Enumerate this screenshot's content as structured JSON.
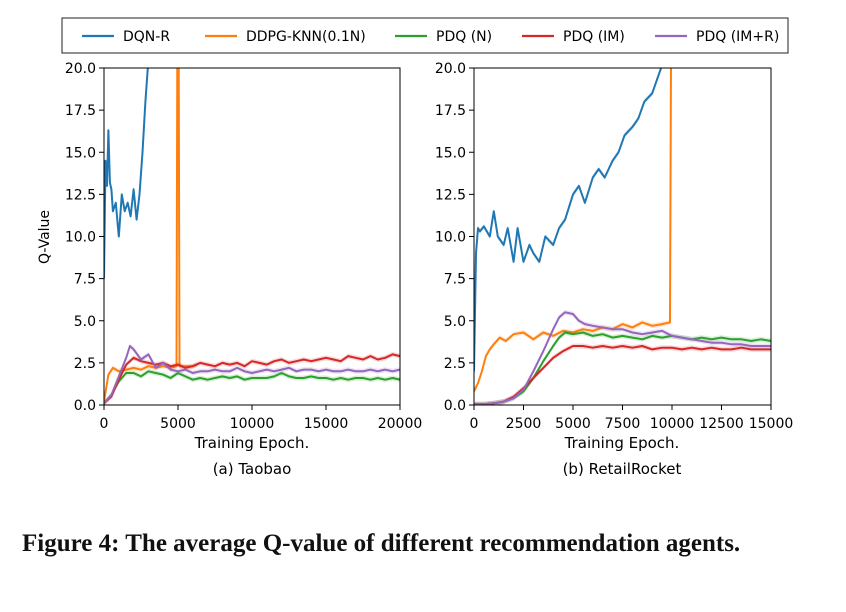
{
  "caption": "Figure 4: The average Q-value of different recommendation agents.",
  "legend": [
    {
      "label": "DQN-R",
      "color": "#1f77b4"
    },
    {
      "label": "DDPG-KNN(0.1N)",
      "color": "#ff7f0e"
    },
    {
      "label": "PDQ (N)",
      "color": "#2ca02c"
    },
    {
      "label": "PDQ (IM)",
      "color": "#d62728"
    },
    {
      "label": "PDQ (IM+R)",
      "color": "#9467bd"
    }
  ],
  "chart_data": [
    {
      "type": "line",
      "subcaption": "(a) Taobao",
      "xlabel": "Training Epoch.",
      "ylabel": "Q-Value",
      "xlim": [
        0,
        20000
      ],
      "ylim": [
        0,
        20
      ],
      "xticks": [
        0,
        5000,
        10000,
        15000,
        20000
      ],
      "yticks": [
        0.0,
        2.5,
        5.0,
        7.5,
        10.0,
        12.5,
        15.0,
        17.5,
        20.0
      ],
      "series": [
        {
          "name": "DQN-R",
          "color": "#1f77b4",
          "x": [
            0,
            100,
            200,
            300,
            400,
            500,
            600,
            800,
            1000,
            1200,
            1400,
            1600,
            1800,
            2000,
            2200,
            2400,
            2600,
            2800,
            3000
          ],
          "y": [
            7.5,
            14.5,
            13.0,
            16.3,
            13.2,
            12.8,
            11.5,
            12.0,
            10.0,
            12.5,
            11.5,
            12.0,
            11.2,
            12.8,
            11.0,
            12.5,
            15.0,
            18.0,
            20.5
          ]
        },
        {
          "name": "DDPG-KNN(0.1N)",
          "color": "#ff7f0e",
          "x": [
            0,
            300,
            600,
            1000,
            1500,
            2000,
            2500,
            3000,
            3500,
            4000,
            4500,
            4900,
            4950,
            5000,
            5050,
            5100,
            5500,
            6000,
            6300
          ],
          "y": [
            0.2,
            1.8,
            2.2,
            2.0,
            2.1,
            2.2,
            2.1,
            2.3,
            2.2,
            2.3,
            2.2,
            2.3,
            20.5,
            20.5,
            20.5,
            2.3,
            2.3,
            2.3,
            2.4
          ]
        },
        {
          "name": "PDQ (N)",
          "color": "#2ca02c",
          "x": [
            0,
            500,
            1000,
            1500,
            2000,
            2500,
            3000,
            3500,
            4000,
            4500,
            5000,
            5500,
            6000,
            6500,
            7000,
            7500,
            8000,
            8500,
            9000,
            9500,
            10000,
            10500,
            11000,
            11500,
            12000,
            12500,
            13000,
            13500,
            14000,
            14500,
            15000,
            15500,
            16000,
            16500,
            17000,
            17500,
            18000,
            18500,
            19000,
            19500,
            20000
          ],
          "y": [
            0.1,
            0.6,
            1.4,
            1.9,
            1.9,
            1.7,
            2.0,
            1.9,
            1.8,
            1.6,
            1.9,
            1.7,
            1.5,
            1.6,
            1.5,
            1.6,
            1.7,
            1.6,
            1.7,
            1.5,
            1.6,
            1.6,
            1.6,
            1.7,
            1.9,
            1.7,
            1.6,
            1.6,
            1.7,
            1.6,
            1.6,
            1.5,
            1.6,
            1.5,
            1.6,
            1.6,
            1.5,
            1.6,
            1.5,
            1.6,
            1.5
          ]
        },
        {
          "name": "PDQ (IM)",
          "color": "#d62728",
          "x": [
            0,
            500,
            1000,
            1500,
            2000,
            2500,
            3000,
            3500,
            4000,
            4500,
            5000,
            5500,
            6000,
            6500,
            7000,
            7500,
            8000,
            8500,
            9000,
            9500,
            10000,
            10500,
            11000,
            11500,
            12000,
            12500,
            13000,
            13500,
            14000,
            14500,
            15000,
            15500,
            16000,
            16500,
            17000,
            17500,
            18000,
            18500,
            19000,
            19500,
            20000
          ],
          "y": [
            0.1,
            0.5,
            1.5,
            2.4,
            2.8,
            2.6,
            2.5,
            2.4,
            2.5,
            2.3,
            2.4,
            2.2,
            2.3,
            2.5,
            2.4,
            2.3,
            2.5,
            2.4,
            2.5,
            2.3,
            2.6,
            2.5,
            2.4,
            2.6,
            2.7,
            2.5,
            2.6,
            2.7,
            2.6,
            2.7,
            2.8,
            2.7,
            2.6,
            2.9,
            2.8,
            2.7,
            2.9,
            2.7,
            2.8,
            3.0,
            2.9
          ]
        },
        {
          "name": "PDQ (IM+R)",
          "color": "#9467bd",
          "x": [
            0,
            500,
            1000,
            1500,
            1750,
            2000,
            2500,
            3000,
            3500,
            4000,
            4500,
            5000,
            5500,
            6000,
            6500,
            7000,
            7500,
            8000,
            8500,
            9000,
            9500,
            10000,
            10500,
            11000,
            11500,
            12000,
            12500,
            13000,
            13500,
            14000,
            14500,
            15000,
            15500,
            16000,
            16500,
            17000,
            17500,
            18000,
            18500,
            19000,
            19500,
            20000
          ],
          "y": [
            0.1,
            0.6,
            1.7,
            2.8,
            3.5,
            3.3,
            2.7,
            3.0,
            2.2,
            2.5,
            2.1,
            2.0,
            2.1,
            1.9,
            2.0,
            2.0,
            2.1,
            2.0,
            2.0,
            2.2,
            2.0,
            1.9,
            2.0,
            2.1,
            2.0,
            2.1,
            2.2,
            2.0,
            2.1,
            2.1,
            2.0,
            2.1,
            2.0,
            2.0,
            2.1,
            2.0,
            2.0,
            2.1,
            2.0,
            2.1,
            2.0,
            2.1
          ]
        }
      ]
    },
    {
      "type": "line",
      "subcaption": "(b) RetailRocket",
      "xlabel": "Training Epoch.",
      "ylabel": "",
      "xlim": [
        0,
        15000
      ],
      "ylim": [
        0,
        20
      ],
      "xticks": [
        0,
        2500,
        5000,
        7500,
        10000,
        12500,
        15000
      ],
      "yticks": [
        0.0,
        2.5,
        5.0,
        7.5,
        10.0,
        12.5,
        15.0,
        17.5,
        20.0
      ],
      "series": [
        {
          "name": "DQN-R",
          "color": "#1f77b4",
          "x": [
            0,
            100,
            200,
            300,
            500,
            800,
            1000,
            1200,
            1500,
            1700,
            2000,
            2200,
            2500,
            2800,
            3000,
            3300,
            3600,
            4000,
            4300,
            4600,
            5000,
            5300,
            5600,
            6000,
            6300,
            6600,
            7000,
            7300,
            7600,
            8000,
            8300,
            8600,
            9000,
            9300,
            9600,
            9800,
            10000
          ],
          "y": [
            2.0,
            9.0,
            10.5,
            10.3,
            10.6,
            10.0,
            11.5,
            10.0,
            9.5,
            10.5,
            8.5,
            10.5,
            8.5,
            9.5,
            9.0,
            8.5,
            10.0,
            9.5,
            10.5,
            11.0,
            12.5,
            13.0,
            12.0,
            13.5,
            14.0,
            13.5,
            14.5,
            15.0,
            16.0,
            16.5,
            17.0,
            18.0,
            18.5,
            19.5,
            20.5,
            20.5,
            20.5
          ]
        },
        {
          "name": "DDPG-KNN(0.1N)",
          "color": "#ff7f0e",
          "x": [
            0,
            200,
            400,
            600,
            800,
            1000,
            1300,
            1600,
            2000,
            2500,
            3000,
            3500,
            4000,
            4500,
            5000,
            5500,
            6000,
            6500,
            7000,
            7500,
            8000,
            8500,
            9000,
            9500,
            9900,
            9950,
            10000,
            10050
          ],
          "y": [
            0.8,
            1.3,
            2.0,
            2.9,
            3.3,
            3.6,
            4.0,
            3.8,
            4.2,
            4.3,
            3.9,
            4.3,
            4.1,
            4.4,
            4.3,
            4.5,
            4.4,
            4.6,
            4.5,
            4.8,
            4.6,
            4.9,
            4.7,
            4.8,
            4.9,
            20.5,
            20.5,
            20.5
          ]
        },
        {
          "name": "PDQ (N)",
          "color": "#2ca02c",
          "x": [
            0,
            500,
            1000,
            1500,
            2000,
            2500,
            3000,
            3500,
            4000,
            4300,
            4600,
            5000,
            5500,
            6000,
            6500,
            7000,
            7500,
            8000,
            8500,
            9000,
            9500,
            10000,
            10500,
            11000,
            11500,
            12000,
            12500,
            13000,
            13500,
            14000,
            14500,
            15000
          ],
          "y": [
            0.05,
            0.05,
            0.1,
            0.2,
            0.4,
            0.8,
            1.6,
            2.6,
            3.5,
            4.0,
            4.3,
            4.2,
            4.3,
            4.1,
            4.2,
            4.0,
            4.1,
            4.0,
            3.9,
            4.1,
            4.0,
            4.1,
            4.0,
            3.9,
            4.0,
            3.9,
            4.0,
            3.9,
            3.9,
            3.8,
            3.9,
            3.8
          ]
        },
        {
          "name": "PDQ (IM)",
          "color": "#d62728",
          "x": [
            0,
            500,
            1000,
            1500,
            2000,
            2500,
            3000,
            3500,
            4000,
            4500,
            5000,
            5500,
            6000,
            6500,
            7000,
            7500,
            8000,
            8500,
            9000,
            9500,
            10000,
            10500,
            11000,
            11500,
            12000,
            12500,
            13000,
            13500,
            14000,
            14500,
            15000
          ],
          "y": [
            0.05,
            0.05,
            0.1,
            0.2,
            0.5,
            1.0,
            1.6,
            2.2,
            2.8,
            3.2,
            3.5,
            3.5,
            3.4,
            3.5,
            3.4,
            3.5,
            3.4,
            3.5,
            3.3,
            3.4,
            3.4,
            3.3,
            3.4,
            3.3,
            3.4,
            3.3,
            3.3,
            3.4,
            3.3,
            3.3,
            3.3
          ]
        },
        {
          "name": "PDQ (IM+R)",
          "color": "#9467bd",
          "x": [
            0,
            500,
            1000,
            1500,
            2000,
            2500,
            3000,
            3500,
            4000,
            4300,
            4600,
            5000,
            5300,
            5600,
            6000,
            6500,
            7000,
            7500,
            8000,
            8500,
            9000,
            9500,
            10000,
            10500,
            11000,
            11500,
            12000,
            12500,
            13000,
            13500,
            14000,
            14500,
            15000
          ],
          "y": [
            0.05,
            0.05,
            0.1,
            0.2,
            0.4,
            0.9,
            2.0,
            3.2,
            4.5,
            5.2,
            5.5,
            5.4,
            5.0,
            4.8,
            4.7,
            4.6,
            4.5,
            4.5,
            4.3,
            4.2,
            4.3,
            4.4,
            4.1,
            4.0,
            3.9,
            3.8,
            3.7,
            3.7,
            3.6,
            3.6,
            3.5,
            3.5,
            3.5
          ]
        }
      ]
    }
  ]
}
